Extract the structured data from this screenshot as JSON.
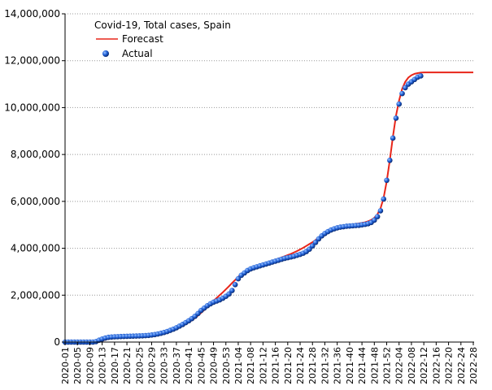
{
  "chart_data": {
    "type": "line",
    "title": "Covid-19, Total cases, Spain",
    "categories": [
      "2020-01",
      null,
      null,
      null,
      "2020-05",
      null,
      null,
      null,
      "2020-09",
      null,
      null,
      null,
      "2020-13",
      null,
      null,
      null,
      "2020-17",
      null,
      null,
      null,
      "2020-21",
      null,
      null,
      null,
      "2020-25",
      null,
      null,
      null,
      "2020-29",
      null,
      null,
      null,
      "2020-33",
      null,
      null,
      null,
      "2020-37",
      null,
      null,
      null,
      "2020-41",
      null,
      null,
      null,
      "2020-45",
      null,
      null,
      null,
      "2020-49",
      null,
      null,
      null,
      "2020-53",
      null,
      null,
      null,
      "2021-04",
      null,
      null,
      null,
      "2021-08",
      null,
      null,
      null,
      "2021-12",
      null,
      null,
      null,
      "2021-16",
      null,
      null,
      null,
      "2021-20",
      null,
      null,
      null,
      "2021-24",
      null,
      null,
      null,
      "2021-28",
      null,
      null,
      null,
      "2021-32",
      null,
      null,
      null,
      "2021-36",
      null,
      null,
      null,
      "2021-40",
      null,
      null,
      null,
      "2021-44",
      null,
      null,
      null,
      "2021-48",
      null,
      null,
      null,
      "2021-52",
      null,
      null,
      null,
      "2022-04",
      null,
      null,
      null,
      "2022-08",
      null,
      null,
      null,
      "2022-12",
      null,
      null,
      null,
      "2022-16",
      null,
      null,
      null,
      "2022-20",
      null,
      null,
      null,
      "2022-24",
      null,
      null,
      null,
      "2022-28"
    ],
    "series": [
      {
        "name": "Forecast",
        "color": "#e8261a",
        "style": "line",
        "values": [
          0,
          0,
          0,
          0,
          0,
          0,
          0,
          0,
          0,
          0,
          0,
          20000,
          60000,
          100000,
          140000,
          170000,
          195000,
          210000,
          220000,
          228000,
          235000,
          240000,
          245000,
          250000,
          255000,
          262000,
          270000,
          280000,
          295000,
          312000,
          335000,
          362000,
          395000,
          432000,
          475000,
          522000,
          575000,
          633000,
          697000,
          767000,
          845000,
          930000,
          1025000,
          1130000,
          1245000,
          1370000,
          1500000,
          1630000,
          1760000,
          1880000,
          2000000,
          2120000,
          2250000,
          2380000,
          2520000,
          2650000,
          2780000,
          2890000,
          2980000,
          3050000,
          3110000,
          3160000,
          3210000,
          3260000,
          3310000,
          3360000,
          3410000,
          3460000,
          3510000,
          3560000,
          3610000,
          3660000,
          3710000,
          3760000,
          3820000,
          3880000,
          3950000,
          4020000,
          4100000,
          4180000,
          4260000,
          4350000,
          4440000,
          4530000,
          4620000,
          4700000,
          4770000,
          4830000,
          4880000,
          4920000,
          4950000,
          4980000,
          5000000,
          5020000,
          5040000,
          5060000,
          5080000,
          5110000,
          5150000,
          5210000,
          5300000,
          5450000,
          5700000,
          6150000,
          6850000,
          7750000,
          8750000,
          9650000,
          10300000,
          10800000,
          11100000,
          11280000,
          11380000,
          11440000,
          11470000,
          11490000,
          11500000,
          11500000,
          11500000,
          11500000,
          11500000,
          11500000,
          11500000,
          11500000,
          11500000,
          11500000,
          11500000,
          11500000,
          11500000,
          11500000,
          11500000,
          11500000,
          11500000
        ]
      },
      {
        "name": "Actual",
        "color": "#1f5fd6",
        "style": "points",
        "values": [
          0,
          0,
          0,
          0,
          0,
          0,
          0,
          0,
          0,
          0,
          20000,
          80000,
          130000,
          170000,
          200000,
          215000,
          225000,
          230000,
          235000,
          240000,
          245000,
          250000,
          255000,
          258000,
          262000,
          268000,
          275000,
          285000,
          300000,
          320000,
          345000,
          375000,
          410000,
          450000,
          500000,
          550000,
          610000,
          680000,
          750000,
          830000,
          910000,
          1000000,
          1100000,
          1220000,
          1350000,
          1450000,
          1550000,
          1630000,
          1700000,
          1750000,
          1800000,
          1870000,
          1950000,
          2050000,
          2200000,
          2450000,
          2700000,
          2850000,
          2950000,
          3050000,
          3120000,
          3170000,
          3210000,
          3250000,
          3290000,
          3330000,
          3370000,
          3410000,
          3450000,
          3490000,
          3530000,
          3570000,
          3600000,
          3630000,
          3660000,
          3700000,
          3740000,
          3790000,
          3860000,
          3960000,
          4100000,
          4250000,
          4400000,
          4530000,
          4630000,
          4710000,
          4780000,
          4830000,
          4870000,
          4900000,
          4920000,
          4940000,
          4950000,
          4960000,
          4970000,
          4980000,
          5000000,
          5020000,
          5050000,
          5100000,
          5200000,
          5350000,
          5600000,
          6100000,
          6900000,
          7750000,
          8700000,
          9550000,
          10150000,
          10600000,
          10850000,
          11000000,
          11100000,
          11200000,
          11300000,
          11350000,
          null,
          null,
          null,
          null,
          null,
          null,
          null,
          null,
          null,
          null,
          null,
          null,
          null,
          null,
          null,
          null,
          null
        ]
      }
    ],
    "ylim": [
      0,
      14000000
    ],
    "yticks": [
      {
        "value": 0,
        "label": "0"
      },
      {
        "value": 2000000,
        "label": "2,000,000"
      },
      {
        "value": 4000000,
        "label": "4,000,000"
      },
      {
        "value": 6000000,
        "label": "6,000,000"
      },
      {
        "value": 8000000,
        "label": "8,000,000"
      },
      {
        "value": 10000000,
        "label": "10,000,000"
      },
      {
        "value": 12000000,
        "label": "12,000,000"
      },
      {
        "value": 14000000,
        "label": "14,000,000"
      }
    ],
    "grid": true
  }
}
